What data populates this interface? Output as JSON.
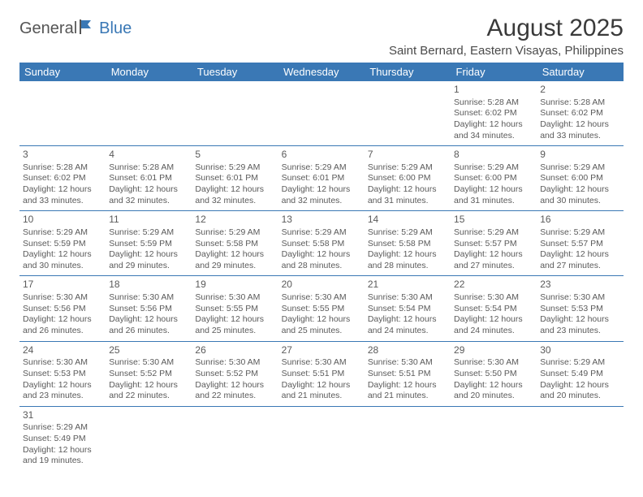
{
  "brand": {
    "part1": "General",
    "part2": "Blue"
  },
  "title": "August 2025",
  "location": "Saint Bernard, Eastern Visayas, Philippines",
  "colors": {
    "header_bg": "#3a78b5",
    "header_fg": "#ffffff",
    "rule": "#3a78b5",
    "text": "#5a5a5a",
    "title": "#3a3a3a"
  },
  "dayNames": [
    "Sunday",
    "Monday",
    "Tuesday",
    "Wednesday",
    "Thursday",
    "Friday",
    "Saturday"
  ],
  "weeks": [
    [
      null,
      null,
      null,
      null,
      null,
      {
        "n": "1",
        "sr": "5:28 AM",
        "ss": "6:02 PM",
        "dl": "12 hours and 34 minutes."
      },
      {
        "n": "2",
        "sr": "5:28 AM",
        "ss": "6:02 PM",
        "dl": "12 hours and 33 minutes."
      }
    ],
    [
      {
        "n": "3",
        "sr": "5:28 AM",
        "ss": "6:02 PM",
        "dl": "12 hours and 33 minutes."
      },
      {
        "n": "4",
        "sr": "5:28 AM",
        "ss": "6:01 PM",
        "dl": "12 hours and 32 minutes."
      },
      {
        "n": "5",
        "sr": "5:29 AM",
        "ss": "6:01 PM",
        "dl": "12 hours and 32 minutes."
      },
      {
        "n": "6",
        "sr": "5:29 AM",
        "ss": "6:01 PM",
        "dl": "12 hours and 32 minutes."
      },
      {
        "n": "7",
        "sr": "5:29 AM",
        "ss": "6:00 PM",
        "dl": "12 hours and 31 minutes."
      },
      {
        "n": "8",
        "sr": "5:29 AM",
        "ss": "6:00 PM",
        "dl": "12 hours and 31 minutes."
      },
      {
        "n": "9",
        "sr": "5:29 AM",
        "ss": "6:00 PM",
        "dl": "12 hours and 30 minutes."
      }
    ],
    [
      {
        "n": "10",
        "sr": "5:29 AM",
        "ss": "5:59 PM",
        "dl": "12 hours and 30 minutes."
      },
      {
        "n": "11",
        "sr": "5:29 AM",
        "ss": "5:59 PM",
        "dl": "12 hours and 29 minutes."
      },
      {
        "n": "12",
        "sr": "5:29 AM",
        "ss": "5:58 PM",
        "dl": "12 hours and 29 minutes."
      },
      {
        "n": "13",
        "sr": "5:29 AM",
        "ss": "5:58 PM",
        "dl": "12 hours and 28 minutes."
      },
      {
        "n": "14",
        "sr": "5:29 AM",
        "ss": "5:58 PM",
        "dl": "12 hours and 28 minutes."
      },
      {
        "n": "15",
        "sr": "5:29 AM",
        "ss": "5:57 PM",
        "dl": "12 hours and 27 minutes."
      },
      {
        "n": "16",
        "sr": "5:29 AM",
        "ss": "5:57 PM",
        "dl": "12 hours and 27 minutes."
      }
    ],
    [
      {
        "n": "17",
        "sr": "5:30 AM",
        "ss": "5:56 PM",
        "dl": "12 hours and 26 minutes."
      },
      {
        "n": "18",
        "sr": "5:30 AM",
        "ss": "5:56 PM",
        "dl": "12 hours and 26 minutes."
      },
      {
        "n": "19",
        "sr": "5:30 AM",
        "ss": "5:55 PM",
        "dl": "12 hours and 25 minutes."
      },
      {
        "n": "20",
        "sr": "5:30 AM",
        "ss": "5:55 PM",
        "dl": "12 hours and 25 minutes."
      },
      {
        "n": "21",
        "sr": "5:30 AM",
        "ss": "5:54 PM",
        "dl": "12 hours and 24 minutes."
      },
      {
        "n": "22",
        "sr": "5:30 AM",
        "ss": "5:54 PM",
        "dl": "12 hours and 24 minutes."
      },
      {
        "n": "23",
        "sr": "5:30 AM",
        "ss": "5:53 PM",
        "dl": "12 hours and 23 minutes."
      }
    ],
    [
      {
        "n": "24",
        "sr": "5:30 AM",
        "ss": "5:53 PM",
        "dl": "12 hours and 23 minutes."
      },
      {
        "n": "25",
        "sr": "5:30 AM",
        "ss": "5:52 PM",
        "dl": "12 hours and 22 minutes."
      },
      {
        "n": "26",
        "sr": "5:30 AM",
        "ss": "5:52 PM",
        "dl": "12 hours and 22 minutes."
      },
      {
        "n": "27",
        "sr": "5:30 AM",
        "ss": "5:51 PM",
        "dl": "12 hours and 21 minutes."
      },
      {
        "n": "28",
        "sr": "5:30 AM",
        "ss": "5:51 PM",
        "dl": "12 hours and 21 minutes."
      },
      {
        "n": "29",
        "sr": "5:30 AM",
        "ss": "5:50 PM",
        "dl": "12 hours and 20 minutes."
      },
      {
        "n": "30",
        "sr": "5:29 AM",
        "ss": "5:49 PM",
        "dl": "12 hours and 20 minutes."
      }
    ],
    [
      {
        "n": "31",
        "sr": "5:29 AM",
        "ss": "5:49 PM",
        "dl": "12 hours and 19 minutes."
      },
      null,
      null,
      null,
      null,
      null,
      null
    ]
  ],
  "labels": {
    "sunrise": "Sunrise:",
    "sunset": "Sunset:",
    "daylight": "Daylight:"
  }
}
